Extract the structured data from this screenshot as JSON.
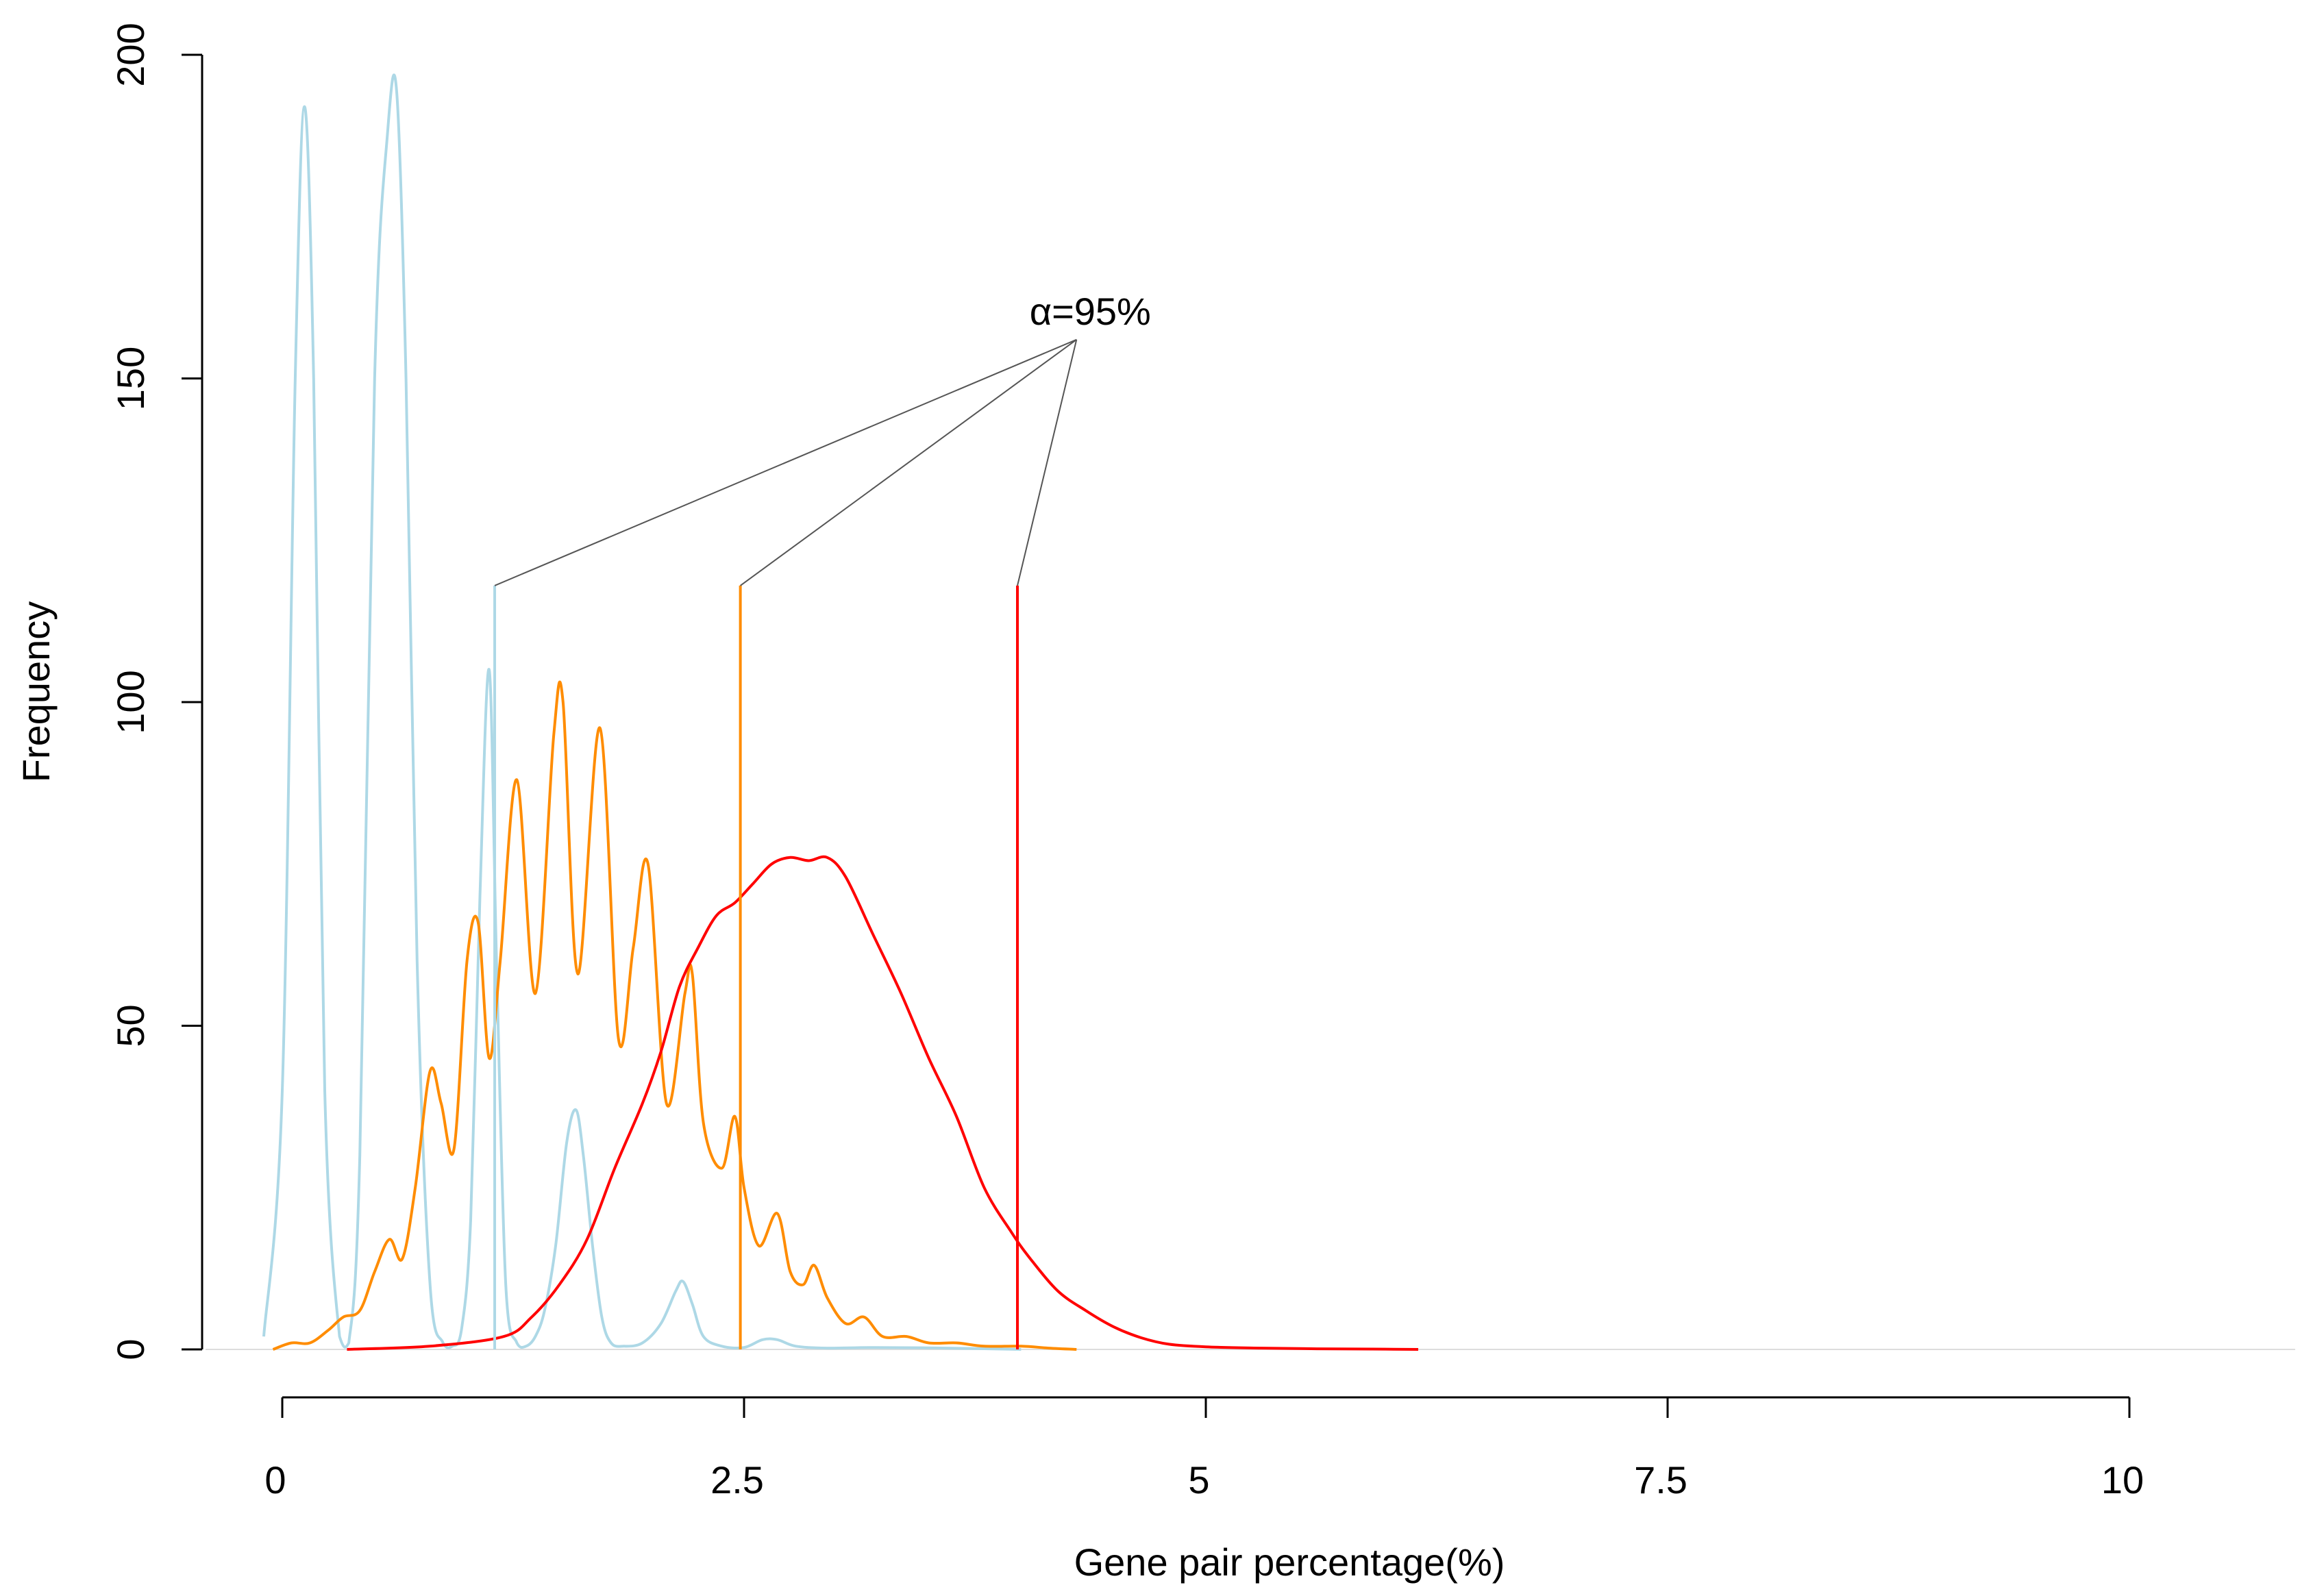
{
  "chart_data": {
    "type": "line",
    "title": "",
    "xlabel": "Gene pair percentage(%)",
    "ylabel": "Frequency",
    "xlim": [
      0,
      10
    ],
    "ylim": [
      0,
      200
    ],
    "x_ticks": [
      0,
      2.5,
      5,
      7.5,
      10
    ],
    "x_tick_labels": [
      "0",
      "2.5",
      "5",
      "7.5",
      "10"
    ],
    "y_ticks": [
      0,
      50,
      100,
      150,
      200
    ],
    "y_tick_labels": [
      "0",
      "50",
      "100",
      "150",
      "200"
    ],
    "grid": false,
    "legend": "none",
    "colors": {
      "lightblue_series": "#add8e6",
      "orange_series": "#ff8c00",
      "red_series": "#ff0000",
      "annotation_line": "#555555",
      "axis": "#000000"
    },
    "series": [
      {
        "color": "#add8e6",
        "x": [
          -0.1,
          0.0,
          0.07,
          0.12,
          0.17,
          0.23,
          0.31,
          0.36,
          0.42,
          0.5,
          0.57,
          0.62,
          0.67,
          0.73,
          0.8,
          0.87,
          0.92,
          0.97,
          1.02,
          1.07,
          1.12,
          1.16,
          1.21,
          1.27,
          1.32,
          1.37,
          1.42,
          1.48,
          1.54,
          1.59,
          1.63,
          1.68,
          1.73,
          1.78,
          1.85,
          1.95,
          2.05,
          2.13,
          2.17,
          2.22,
          2.28,
          2.38,
          2.5,
          2.6,
          2.68,
          2.78,
          2.95,
          3.2,
          3.6,
          4.0
        ],
        "y": [
          2,
          40,
          150,
          192,
          150,
          40,
          2,
          1,
          30,
          150,
          188,
          194,
          150,
          60,
          10,
          1,
          0.5,
          3,
          20,
          70,
          105,
          60,
          10,
          1,
          0.5,
          2,
          6,
          16,
          32,
          37,
          30,
          16,
          5,
          1,
          0.5,
          1,
          4,
          9,
          10.5,
          7,
          2,
          0.5,
          0.3,
          1.5,
          1.5,
          0.5,
          0.2,
          0.3,
          0.2,
          0
        ]
      },
      {
        "color": "#ff8c00",
        "x": [
          -0.05,
          0.05,
          0.15,
          0.25,
          0.33,
          0.42,
          0.5,
          0.58,
          0.65,
          0.72,
          0.8,
          0.86,
          0.93,
          1.0,
          1.06,
          1.12,
          1.18,
          1.27,
          1.37,
          1.47,
          1.52,
          1.6,
          1.72,
          1.82,
          1.9,
          1.98,
          2.08,
          2.18,
          2.22,
          2.28,
          2.38,
          2.45,
          2.5,
          2.58,
          2.68,
          2.75,
          2.82,
          2.88,
          2.95,
          3.05,
          3.15,
          3.25,
          3.38,
          3.5,
          3.65,
          3.8,
          4.0,
          4.15,
          4.3
        ],
        "y": [
          0,
          1,
          1,
          3,
          5,
          6,
          12,
          17,
          14,
          25,
          43,
          38,
          31,
          60,
          66,
          45,
          60,
          88,
          55,
          95,
          100,
          58,
          96,
          48,
          62,
          75,
          38,
          55,
          58,
          35,
          28,
          36,
          25,
          16,
          21,
          12,
          10,
          13,
          8,
          4,
          5,
          2,
          2,
          1,
          1,
          0.5,
          0.5,
          0.2,
          0
        ]
      },
      {
        "color": "#ff0000",
        "x": [
          0.35,
          0.8,
          1.2,
          1.35,
          1.5,
          1.65,
          1.8,
          1.95,
          2.05,
          2.15,
          2.25,
          2.35,
          2.45,
          2.55,
          2.65,
          2.75,
          2.85,
          2.95,
          3.05,
          3.2,
          3.35,
          3.5,
          3.65,
          3.8,
          3.95,
          4.05,
          4.2,
          4.35,
          4.5,
          4.65,
          4.8,
          5.0,
          5.3,
          5.6,
          5.9,
          6.15
        ],
        "y": [
          0,
          0.5,
          2,
          5,
          10,
          17,
          28,
          38,
          46,
          56,
          62,
          67,
          69,
          72,
          75,
          76,
          75.5,
          76,
          73,
          64,
          55,
          45,
          36,
          25,
          18,
          14,
          9,
          6,
          3.5,
          1.8,
          0.8,
          0.4,
          0.2,
          0.1,
          0.05,
          0
        ]
      }
    ],
    "cutoff_lines": [
      {
        "x": 1.15,
        "color": "#add8e6",
        "top": 118
      },
      {
        "x": 2.48,
        "color": "#ff8c00",
        "top": 118
      },
      {
        "x": 3.98,
        "color": "#ff0000",
        "top": 118
      }
    ],
    "annotation": {
      "text": "α=95%",
      "anchor_x": 4.3,
      "anchor_y": 156
    }
  }
}
